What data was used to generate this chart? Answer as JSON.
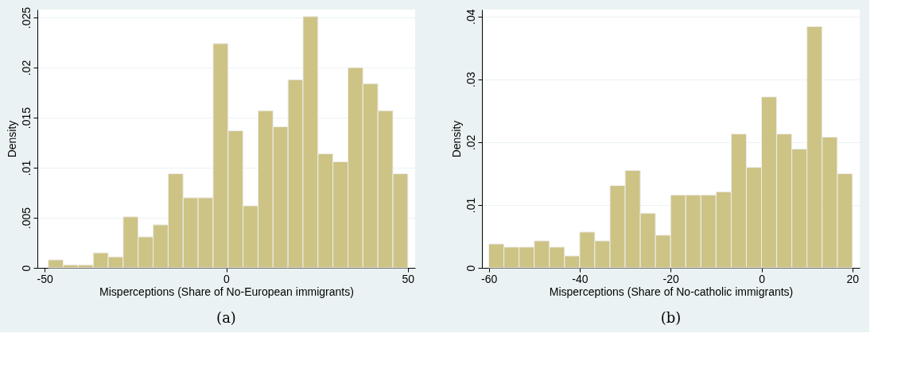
{
  "chart_data": [
    {
      "type": "histogram",
      "xlabel": "Misperceptions (Share of No-European immigrants)",
      "ylabel": "Density",
      "annotations": [
        "(a)"
      ],
      "color": "#cdc385",
      "grid": "y",
      "bins": [
        -49,
        -44.875,
        -40.75,
        -36.625,
        -32.5,
        -28.375,
        -24.25,
        -20.125,
        -16,
        -11.875,
        -7.75,
        -3.625,
        0.5,
        4.625,
        8.75,
        12.875,
        17,
        21.125,
        25.25,
        29.375,
        33.5,
        37.625,
        41.75,
        45.875,
        50
      ],
      "values": [
        0.0008,
        0.0003,
        0.0003,
        0.0015,
        0.0011,
        0.0051,
        0.0031,
        0.0043,
        0.0094,
        0.007,
        0.007,
        0.0224,
        0.0137,
        0.0062,
        0.0157,
        0.0141,
        0.0188,
        0.0251,
        0.0114,
        0.0106,
        0.02,
        0.0184,
        0.0157,
        0.0094
      ],
      "xlim": [
        -52,
        52
      ],
      "xticks": [
        -50,
        0,
        50
      ],
      "ylim": [
        0,
        0.0258
      ],
      "yticks": [
        {
          "value": 0,
          "label": "0"
        },
        {
          "value": 0.005,
          "label": ".005"
        },
        {
          "value": 0.01,
          "label": ".01"
        },
        {
          "value": 0.015,
          "label": ".015"
        },
        {
          "value": 0.02,
          "label": ".02"
        },
        {
          "value": 0.025,
          "label": ".025"
        }
      ]
    },
    {
      "type": "histogram",
      "xlabel": "Misperceptions (Share of No-catholic immigrants)",
      "ylabel": "Density",
      "annotations": [
        "(b)"
      ],
      "color": "#cdc385",
      "grid": "y",
      "bins": [
        -60,
        -56.667,
        -53.333,
        -50,
        -46.667,
        -43.333,
        -40,
        -36.667,
        -33.333,
        -30,
        -26.667,
        -23.333,
        -20,
        -16.667,
        -13.333,
        -10,
        -6.667,
        -3.333,
        0,
        3.333,
        6.667,
        10,
        13.333,
        16.667,
        20
      ],
      "values": [
        0.0038,
        0.0033,
        0.0033,
        0.0043,
        0.0033,
        0.0019,
        0.0057,
        0.0043,
        0.0131,
        0.0155,
        0.0087,
        0.0052,
        0.0116,
        0.0116,
        0.0116,
        0.0121,
        0.0213,
        0.016,
        0.0272,
        0.0213,
        0.0189,
        0.0384,
        0.0208,
        0.015
      ],
      "xlim": [
        -61.5,
        21.6
      ],
      "xticks": [
        -60,
        -40,
        -20,
        0,
        20
      ],
      "ylim": [
        0,
        0.0411
      ],
      "yticks": [
        {
          "value": 0,
          "label": "0"
        },
        {
          "value": 0.01,
          "label": ".01"
        },
        {
          "value": 0.02,
          "label": ".02"
        },
        {
          "value": 0.03,
          "label": ".03"
        },
        {
          "value": 0.04,
          "label": ".04"
        }
      ]
    }
  ]
}
